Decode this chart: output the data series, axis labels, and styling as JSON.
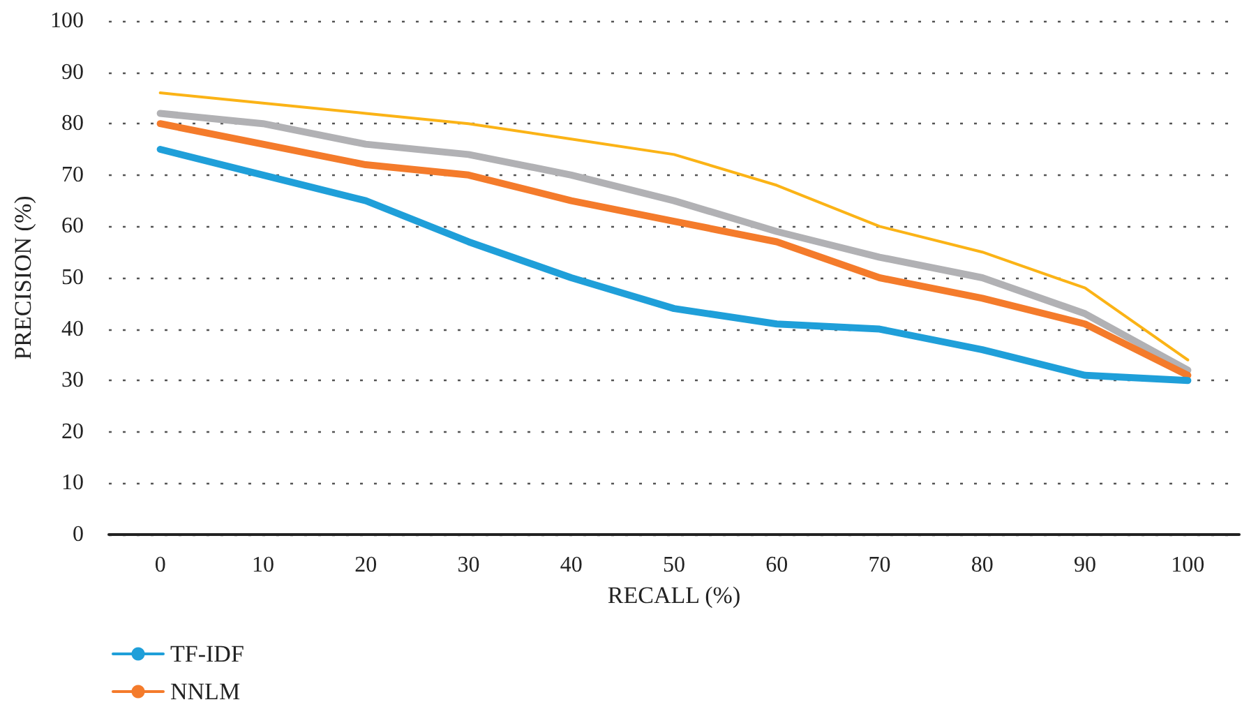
{
  "chart_data": {
    "type": "line",
    "xlabel": "RECALL (%)",
    "ylabel": "PRECISION (%)",
    "categories": [
      "0",
      "10",
      "20",
      "30",
      "40",
      "50",
      "60",
      "70",
      "80",
      "90",
      "100"
    ],
    "series": [
      {
        "name": "TF-IDF",
        "color": "#1f9fd9",
        "values": [
          75,
          70,
          65,
          57,
          50,
          44,
          41,
          40,
          36,
          31,
          30
        ]
      },
      {
        "name": "NNLM",
        "color": "#f47b2b",
        "values": [
          80,
          76,
          72,
          70,
          65,
          61,
          57,
          50,
          46,
          41,
          31
        ]
      },
      {
        "color": "#b1b1b4",
        "values": [
          82,
          80,
          76,
          74,
          70,
          65,
          59,
          54,
          50,
          43,
          32
        ]
      },
      {
        "color": "#fbb316",
        "values": [
          86,
          84,
          82,
          80,
          77,
          74,
          68,
          60,
          55,
          48,
          34
        ]
      }
    ],
    "ylim": [
      0,
      100
    ],
    "yticks": [
      0,
      10,
      20,
      30,
      40,
      50,
      60,
      70,
      80,
      90,
      100
    ],
    "grid": "y",
    "legend": "bottom left"
  }
}
